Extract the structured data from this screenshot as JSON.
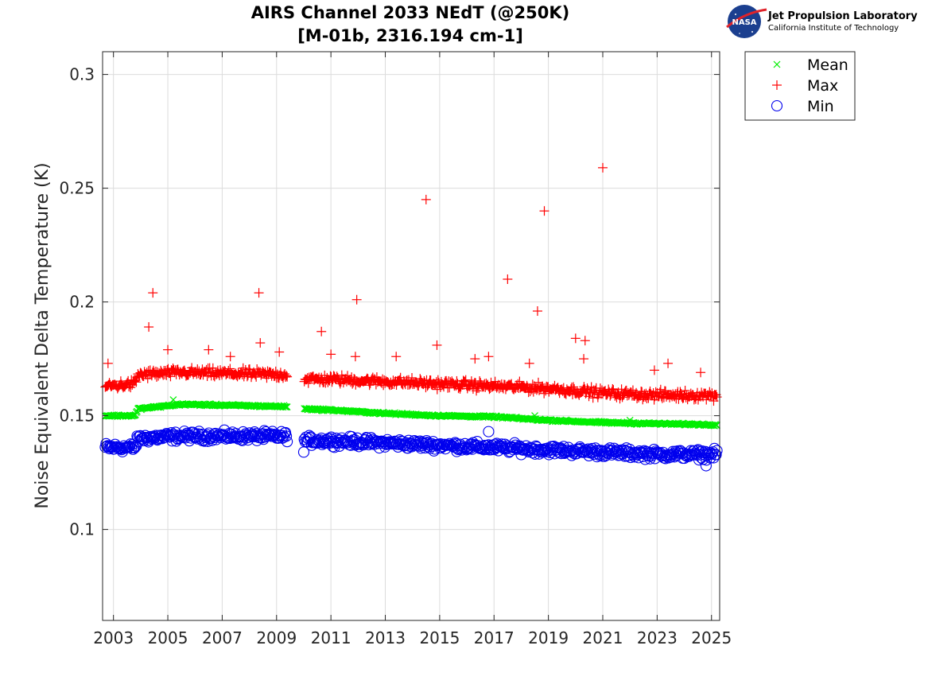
{
  "logo": {
    "org": "Jet Propulsion Laboratory",
    "sub": "California Institute of Technology",
    "badge": "NASA"
  },
  "chart_data": {
    "type": "scatter",
    "title": "AIRS Channel 2033 NEdT (@250K)",
    "subtitle": "[M-01b, 2316.194 cm-1]",
    "xlabel": "",
    "ylabel": "Noise Equivalent Delta Temperature (K)",
    "xlim": [
      2002.6,
      2025.3
    ],
    "ylim": [
      0.06,
      0.31
    ],
    "x_ticks": [
      "2003",
      "2005",
      "2007",
      "2009",
      "2011",
      "2013",
      "2015",
      "2017",
      "2019",
      "2021",
      "2023",
      "2025"
    ],
    "y_ticks": [
      "0.1",
      "0.15",
      "0.2",
      "0.25",
      "0.3"
    ],
    "grid": true,
    "legend_position": "outside-top-right",
    "data_gap": [
      2009.4,
      2010.0
    ],
    "series": [
      {
        "name": "Mean",
        "marker": "x",
        "color": "#00ee00",
        "trend": [
          [
            2002.7,
            0.15
          ],
          [
            2003.8,
            0.15
          ],
          [
            2003.9,
            0.153
          ],
          [
            2005.5,
            0.155
          ],
          [
            2009.4,
            0.154
          ],
          [
            2010.0,
            0.153
          ],
          [
            2011.0,
            0.1525
          ],
          [
            2013.0,
            0.151
          ],
          [
            2015.0,
            0.15
          ],
          [
            2017.0,
            0.1495
          ],
          [
            2019.0,
            0.148
          ],
          [
            2021.0,
            0.147
          ],
          [
            2023.0,
            0.1465
          ],
          [
            2025.2,
            0.146
          ]
        ],
        "spread": 0.0006,
        "outliers": [
          [
            2005.2,
            0.157
          ],
          [
            2018.5,
            0.15
          ],
          [
            2022.0,
            0.148
          ]
        ]
      },
      {
        "name": "Max",
        "marker": "+",
        "color": "#ff0000",
        "trend": [
          [
            2002.7,
            0.163
          ],
          [
            2003.8,
            0.164
          ],
          [
            2003.9,
            0.168
          ],
          [
            2005.5,
            0.169
          ],
          [
            2009.4,
            0.168
          ],
          [
            2010.0,
            0.166
          ],
          [
            2011.0,
            0.166
          ],
          [
            2013.0,
            0.165
          ],
          [
            2015.0,
            0.164
          ],
          [
            2017.0,
            0.163
          ],
          [
            2019.0,
            0.162
          ],
          [
            2021.0,
            0.16
          ],
          [
            2023.0,
            0.159
          ],
          [
            2025.2,
            0.159
          ]
        ],
        "spread": 0.003,
        "outliers": [
          [
            2002.8,
            0.173
          ],
          [
            2004.3,
            0.189
          ],
          [
            2004.45,
            0.204
          ],
          [
            2005.0,
            0.179
          ],
          [
            2006.5,
            0.179
          ],
          [
            2007.3,
            0.176
          ],
          [
            2008.35,
            0.204
          ],
          [
            2008.4,
            0.182
          ],
          [
            2009.1,
            0.178
          ],
          [
            2010.65,
            0.187
          ],
          [
            2011.0,
            0.177
          ],
          [
            2011.9,
            0.176
          ],
          [
            2011.95,
            0.201
          ],
          [
            2013.4,
            0.176
          ],
          [
            2014.5,
            0.245
          ],
          [
            2014.9,
            0.181
          ],
          [
            2016.3,
            0.175
          ],
          [
            2016.8,
            0.176
          ],
          [
            2017.5,
            0.21
          ],
          [
            2018.3,
            0.173
          ],
          [
            2018.6,
            0.196
          ],
          [
            2018.85,
            0.24
          ],
          [
            2020.0,
            0.184
          ],
          [
            2020.3,
            0.175
          ],
          [
            2020.35,
            0.183
          ],
          [
            2021.0,
            0.259
          ],
          [
            2022.9,
            0.17
          ],
          [
            2023.4,
            0.173
          ],
          [
            2024.6,
            0.169
          ]
        ]
      },
      {
        "name": "Min",
        "marker": "o",
        "color": "#0000ee",
        "trend": [
          [
            2002.7,
            0.136
          ],
          [
            2003.8,
            0.136
          ],
          [
            2003.9,
            0.14
          ],
          [
            2005.5,
            0.141
          ],
          [
            2009.4,
            0.141
          ],
          [
            2010.0,
            0.139
          ],
          [
            2011.0,
            0.139
          ],
          [
            2013.0,
            0.138
          ],
          [
            2015.0,
            0.137
          ],
          [
            2017.0,
            0.136
          ],
          [
            2019.0,
            0.135
          ],
          [
            2021.0,
            0.134
          ],
          [
            2023.0,
            0.133
          ],
          [
            2025.2,
            0.133
          ]
        ],
        "spread": 0.003,
        "outliers": [
          [
            2016.8,
            0.143
          ],
          [
            2024.8,
            0.128
          ],
          [
            2010.0,
            0.134
          ]
        ]
      }
    ]
  }
}
